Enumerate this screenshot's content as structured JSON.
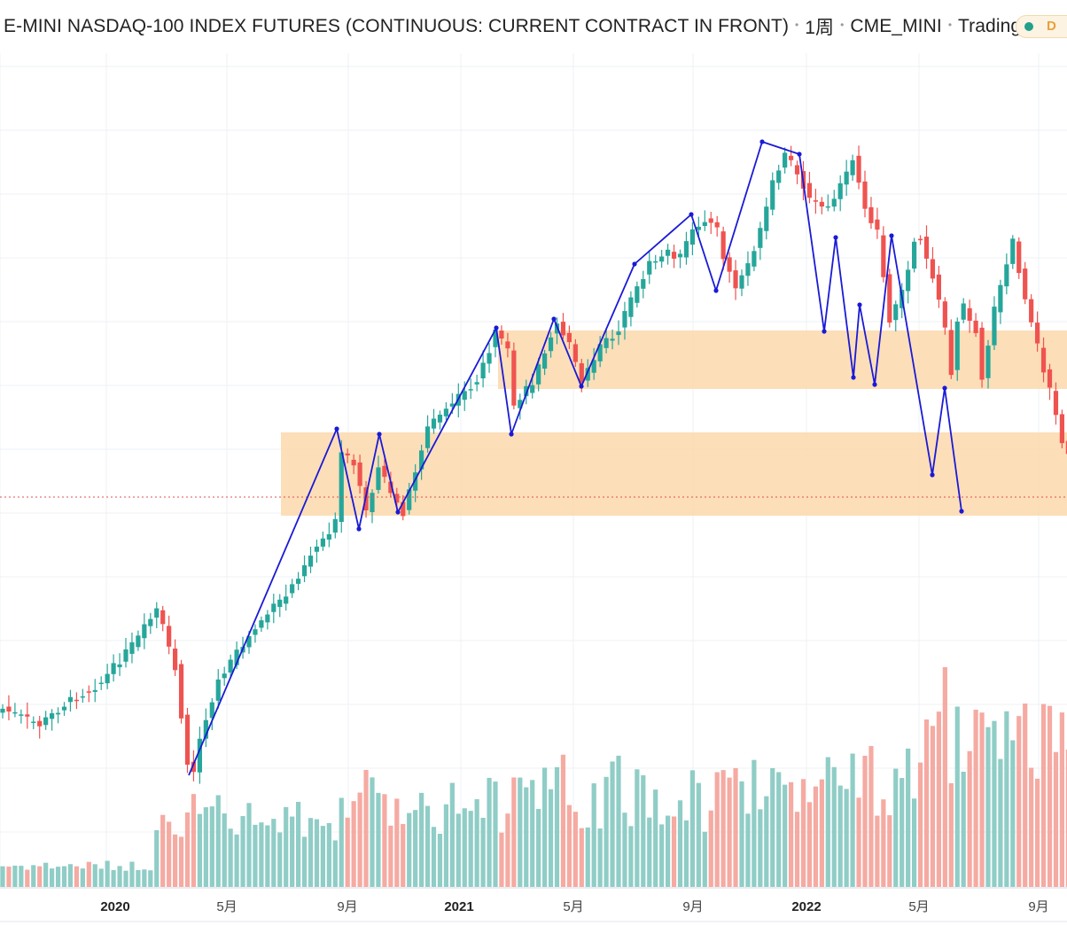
{
  "header": {
    "title": "E-MINI NASDAQ-100 INDEX FUTURES (CONTINUOUS: CURRENT CONTRACT IN FRONT)",
    "interval": "1周",
    "exchange": "CME_MINI",
    "source": "TradingView",
    "market_status": "D"
  },
  "colors": {
    "up": "#26a69a",
    "down": "#ef5350",
    "up_volume": "#8fcdc6",
    "down_volume": "#f5aaa2",
    "trend_line": "#1a1ad6",
    "zone": "#fbd8ac",
    "price_line": "#e05050",
    "grid": "#eef0f4"
  },
  "chart_data": {
    "type": "candlestick",
    "timeframe": "1W",
    "x_tick_labels": [
      "月",
      "2020",
      "5月",
      "9月",
      "2021",
      "5月",
      "9月",
      "2022",
      "5月",
      "9月"
    ],
    "price_axis_labels": "not visible",
    "grid": true,
    "series_shape": [
      {
        "period": "2019 Q4 - 2020 Feb",
        "direction": "steady rise to a peak"
      },
      {
        "period": "2020 Feb - Mar",
        "direction": "sharp crash to the 2020 low"
      },
      {
        "period": "2020 Mar - Sep",
        "direction": "strong rally"
      },
      {
        "period": "2020 Sep - Nov",
        "direction": "zig-zag consolidation"
      },
      {
        "period": "2020 Nov - 2021 Feb",
        "direction": "rise"
      },
      {
        "period": "2021 Feb - May",
        "direction": "pullback and range"
      },
      {
        "period": "2021 May - Sep",
        "direction": "rise"
      },
      {
        "period": "2021 Sep - Oct",
        "direction": "dip"
      },
      {
        "period": "2021 Oct - Nov",
        "direction": "rally to the all-time high"
      },
      {
        "period": "2021 Dec - 2022 Jun",
        "direction": "decline to the lower zone"
      }
    ],
    "annotations": {
      "horizontal_zones": 2,
      "zigzag_trend_line": true,
      "current_price_line": "dotted"
    }
  }
}
